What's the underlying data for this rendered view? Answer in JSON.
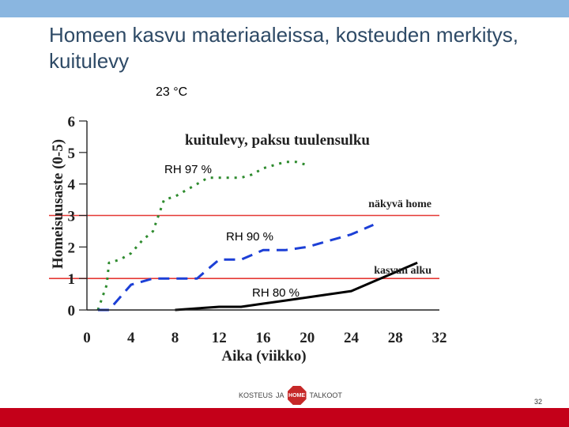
{
  "slide": {
    "title": "Homeen kasvu materiaaleissa, kosteuden merkitys, kuitulevy",
    "subtitle": "23 °C",
    "page_number": "32",
    "footer_logo": {
      "left": "KOSTEUS",
      "middle": "JA",
      "center": "HOME",
      "right": "TALKOOT"
    },
    "colors": {
      "top_bar": "#8ab6e0",
      "bottom_bar": "#c40019",
      "title": "#2e4a66"
    }
  },
  "chart_data": {
    "type": "line",
    "title": "kuitulevy, paksu tuulensulku",
    "xlabel": "Aika (viikko)",
    "ylabel": "Homeisuusaste (0-5)",
    "xlim": [
      0,
      32
    ],
    "ylim": [
      0,
      6
    ],
    "xticks": [
      0,
      4,
      8,
      12,
      16,
      20,
      24,
      28,
      32
    ],
    "yticks": [
      0,
      1,
      2,
      3,
      4,
      5,
      6
    ],
    "grid": false,
    "reference_lines": [
      {
        "label": "näkyvä home",
        "y": 3,
        "color": "#e53935"
      },
      {
        "label": "kasvun alku",
        "y": 1,
        "color": "#e53935"
      }
    ],
    "series": [
      {
        "name": "RH 97 %",
        "color": "#2e8b2e",
        "dash": "dotted",
        "x": [
          1,
          1.8,
          2,
          3,
          4,
          5,
          6,
          6.5,
          7,
          8,
          9,
          10,
          11,
          12,
          14,
          15,
          16,
          17,
          18,
          19,
          20
        ],
        "y": [
          0,
          0.8,
          1.5,
          1.6,
          1.8,
          2.2,
          2.5,
          3.0,
          3.5,
          3.6,
          3.8,
          4.0,
          4.2,
          4.2,
          4.2,
          4.3,
          4.5,
          4.6,
          4.7,
          4.7,
          4.6
        ]
      },
      {
        "name": "RH 90 %",
        "color": "#1c3fd6",
        "dash": "dashed",
        "x": [
          1,
          2,
          3,
          4,
          6,
          8,
          10,
          11,
          12,
          14,
          16,
          18,
          20,
          22,
          24,
          26
        ],
        "y": [
          0,
          0,
          0.4,
          0.8,
          1.0,
          1.0,
          1.0,
          1.3,
          1.6,
          1.6,
          1.9,
          1.9,
          2.0,
          2.2,
          2.4,
          2.7
        ]
      },
      {
        "name": "RH 80 %",
        "color": "#000000",
        "dash": "solid",
        "x": [
          8,
          10,
          12,
          14,
          16,
          18,
          20,
          22,
          24,
          26,
          28,
          30
        ],
        "y": [
          0,
          0.05,
          0.1,
          0.1,
          0.2,
          0.3,
          0.4,
          0.5,
          0.6,
          0.9,
          1.2,
          1.5
        ]
      }
    ]
  }
}
